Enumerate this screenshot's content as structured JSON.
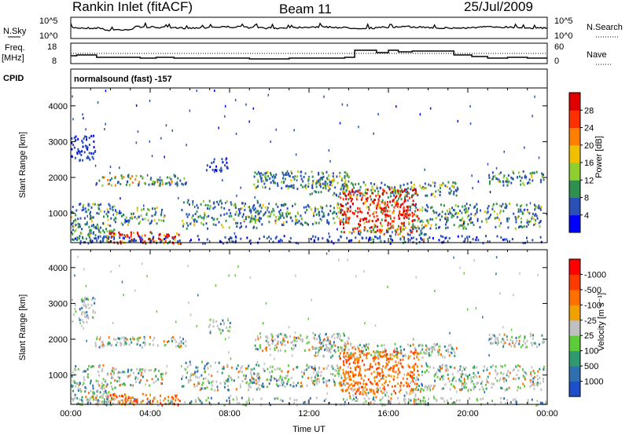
{
  "header": {
    "station": "Rankin Inlet (fitACF)",
    "beam": "Beam 11",
    "date": "25/Jul/2009"
  },
  "panels": {
    "nsky": {
      "label": "N.Sky",
      "right_label": "N.Search",
      "left_ticks": [
        "10^5",
        "10^0"
      ],
      "right_ticks": [
        "10^5",
        "10^0"
      ]
    },
    "freq": {
      "label_top": "Freq.",
      "label_bottom": "[MHz]",
      "left_ticks": [
        "18",
        "8"
      ],
      "right_label": "Nave",
      "right_ticks": [
        "60",
        "0"
      ]
    },
    "cpid": {
      "label": "CPID",
      "text": "normalsound (fast) -157"
    }
  },
  "chart_data": [
    {
      "type": "heatmap",
      "title": "",
      "ylabel": "Slant Range [km]",
      "xlabel": "",
      "x_ticks": [
        "00:00",
        "04:00",
        "08:00",
        "12:00",
        "16:00",
        "20:00",
        "00:00"
      ],
      "x_range_hours": [
        0,
        24
      ],
      "ylim": [
        180,
        4500
      ],
      "y_ticks": [
        1000,
        2000,
        3000,
        4000
      ],
      "colorbar": {
        "label": "Power [dB]",
        "tick_labels": [
          "4",
          "8",
          "12",
          "16",
          "20",
          "24",
          "28"
        ],
        "colors": [
          "#0000ff",
          "#2a4fb6",
          "#2f8f4f",
          "#8fce2f",
          "#f0c000",
          "#ff7f00",
          "#ff3000",
          "#e00000"
        ]
      }
    },
    {
      "type": "heatmap",
      "title": "",
      "ylabel": "Slant Range [km]",
      "xlabel": "Time UT",
      "x_ticks": [
        "00:00",
        "04:00",
        "08:00",
        "12:00",
        "16:00",
        "20:00",
        "00:00"
      ],
      "x_range_hours": [
        0,
        24
      ],
      "ylim": [
        180,
        4500
      ],
      "y_ticks": [
        1000,
        2000,
        3000,
        4000
      ],
      "colorbar": {
        "label": "Velocity [m s⁻¹]",
        "tick_labels": [
          "1000",
          "500",
          "100",
          "25",
          "-25",
          "-100",
          "-500",
          "-1000"
        ],
        "colors": [
          "#1e4fc8",
          "#2f6fb0",
          "#2f9a6f",
          "#5ecb3a",
          "#c0c0c0",
          "#f0a000",
          "#ff7000",
          "#ff3a00",
          "#ff0000"
        ]
      }
    }
  ]
}
